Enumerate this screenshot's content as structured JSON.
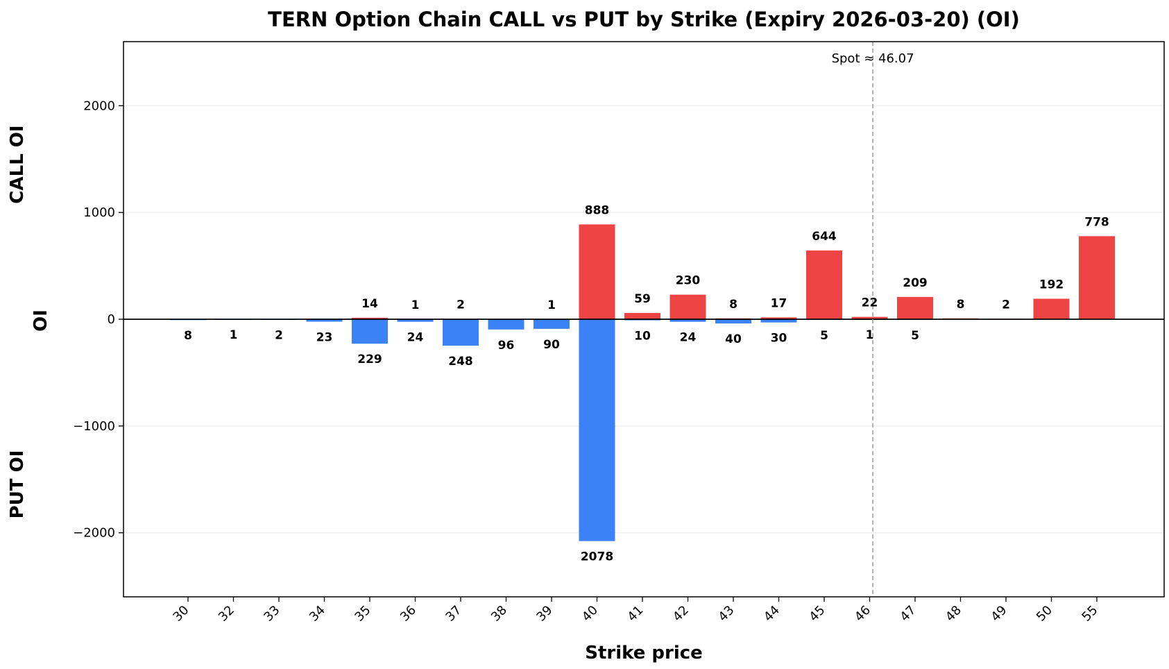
{
  "chart_data": {
    "type": "bar",
    "title": "TERN Option Chain CALL vs PUT by Strike (Expiry 2026-03-20) (OI)",
    "xlabel": "Strike price",
    "ylabel": "OI",
    "ylabel_top": "CALL OI",
    "ylabel_bottom": "PUT OI",
    "categories": [
      "30",
      "32",
      "33",
      "34",
      "35",
      "36",
      "37",
      "38",
      "39",
      "40",
      "41",
      "42",
      "43",
      "44",
      "45",
      "46",
      "47",
      "48",
      "49",
      "50",
      "55"
    ],
    "series": [
      {
        "name": "CALL",
        "color": "#ef4444",
        "values": [
          0,
          0,
          0,
          0,
          14,
          1,
          2,
          0,
          1,
          888,
          59,
          230,
          8,
          17,
          644,
          22,
          209,
          8,
          2,
          192,
          778
        ]
      },
      {
        "name": "PUT",
        "color": "#3b82f6",
        "values": [
          8,
          1,
          2,
          23,
          229,
          24,
          248,
          96,
          90,
          2078,
          10,
          24,
          40,
          30,
          5,
          1,
          5,
          0,
          0,
          0,
          0
        ]
      }
    ],
    "ylim": [
      -2600,
      2600
    ],
    "yticks": [
      -2000,
      -1000,
      0,
      1000,
      2000
    ],
    "ytick_labels": [
      "−2000",
      "−1000",
      "0",
      "1000",
      "2000"
    ],
    "grid": "horizontal",
    "spot": {
      "value": 46.07,
      "label": "Spot ≈ 46.07"
    }
  }
}
